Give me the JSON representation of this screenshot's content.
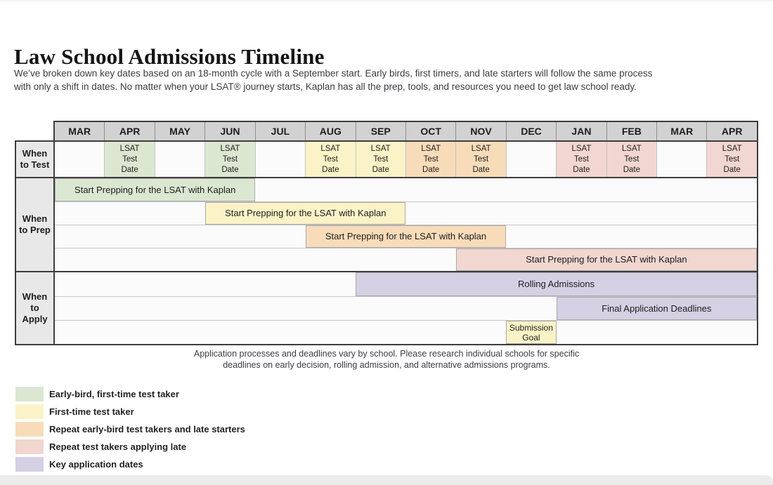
{
  "page": {
    "title": "Law School Admissions Timeline",
    "description_line1": "We’ve broken down key dates based on an 18-month cycle with a September start. Early birds, first timers, and late starters will follow the same process",
    "description_line2": "with only a shift in dates. No matter when your LSAT® journey starts, Kaplan has all the prep, tools, and resources you need to get law school ready.",
    "footnote_line1": "Application processes and deadlines vary by school. Please research individual schools for specific",
    "footnote_line2": "deadlines on early decision, rolling admission, and alternative admissions programs."
  },
  "colors": {
    "green": "#dce7d2",
    "yellow": "#fbf3c7",
    "orange": "#f8dcba",
    "pink": "#f2d6d0",
    "purple": "#d5d0e3",
    "header_bg": "#d2d2d2",
    "label_bg": "#e8e8e8",
    "row_bg": "#fbfbfb"
  },
  "chart_data": {
    "type": "table",
    "subtype": "gantt-timeline",
    "title": "Law School Admissions Timeline",
    "months": [
      "MAR",
      "APR",
      "MAY",
      "JUN",
      "JUL",
      "AUG",
      "SEP",
      "OCT",
      "NOV",
      "DEC",
      "JAN",
      "FEB",
      "MAR",
      "APR"
    ],
    "test_row": {
      "label_lines": [
        "When",
        "to Test"
      ],
      "cells": [
        {
          "month_index": 1,
          "month": "APR",
          "lines": [
            "LSAT",
            "Test",
            "Date"
          ],
          "color": "green"
        },
        {
          "month_index": 3,
          "month": "JUN",
          "lines": [
            "LSAT",
            "Test",
            "Date"
          ],
          "color": "green"
        },
        {
          "month_index": 5,
          "month": "AUG",
          "lines": [
            "LSAT",
            "Test",
            "Date"
          ],
          "color": "yellow"
        },
        {
          "month_index": 6,
          "month": "SEP",
          "lines": [
            "LSAT",
            "Test",
            "Date"
          ],
          "color": "yellow"
        },
        {
          "month_index": 7,
          "month": "OCT",
          "lines": [
            "LSAT",
            "Test",
            "Date"
          ],
          "color": "orange"
        },
        {
          "month_index": 8,
          "month": "NOV",
          "lines": [
            "LSAT",
            "Test",
            "Date"
          ],
          "color": "orange"
        },
        {
          "month_index": 10,
          "month": "JAN",
          "lines": [
            "LSAT",
            "Test",
            "Date"
          ],
          "color": "pink"
        },
        {
          "month_index": 11,
          "month": "FEB",
          "lines": [
            "LSAT",
            "Test",
            "Date"
          ],
          "color": "pink"
        },
        {
          "month_index": 13,
          "month": "APR",
          "lines": [
            "LSAT",
            "Test",
            "Date"
          ],
          "color": "pink"
        }
      ]
    },
    "prep_rows": {
      "label_lines": [
        "When",
        "to Prep"
      ],
      "bars": [
        {
          "start": 0,
          "span": 4,
          "range": "MAR–JUN",
          "label": "Start Prepping for the LSAT with Kaplan",
          "color": "green"
        },
        {
          "start": 3,
          "span": 4,
          "range": "JUN–SEP",
          "label": "Start Prepping for the LSAT with Kaplan",
          "color": "yellow"
        },
        {
          "start": 5,
          "span": 4,
          "range": "AUG–NOV",
          "label": "Start Prepping for the LSAT with Kaplan",
          "color": "orange"
        },
        {
          "start": 8,
          "span": 6,
          "range": "NOV–APR",
          "label": "Start Prepping for the LSAT with Kaplan",
          "color": "pink"
        }
      ]
    },
    "apply_rows": {
      "label_lines": [
        "When",
        "to",
        "Apply"
      ],
      "bars": [
        {
          "start": 6,
          "span": 8,
          "range": "SEP–APR",
          "label": "Rolling Admissions",
          "color": "purple"
        },
        {
          "start": 10,
          "span": 4,
          "range": "JAN–APR",
          "label": "Final Application Deadlines",
          "color": "purple"
        },
        {
          "start": 9,
          "span": 1,
          "range": "DEC",
          "label_lines": [
            "Submission",
            "Goal"
          ],
          "color": "yellow"
        }
      ]
    }
  },
  "legend": {
    "items": [
      {
        "color": "green",
        "label": "Early-bird, first-time test taker"
      },
      {
        "color": "yellow",
        "label": "First-time test taker"
      },
      {
        "color": "orange",
        "label": "Repeat early-bird test takers and late starters"
      },
      {
        "color": "pink",
        "label": "Repeat test takers applying late"
      },
      {
        "color": "purple",
        "label": "Key application dates"
      }
    ]
  }
}
